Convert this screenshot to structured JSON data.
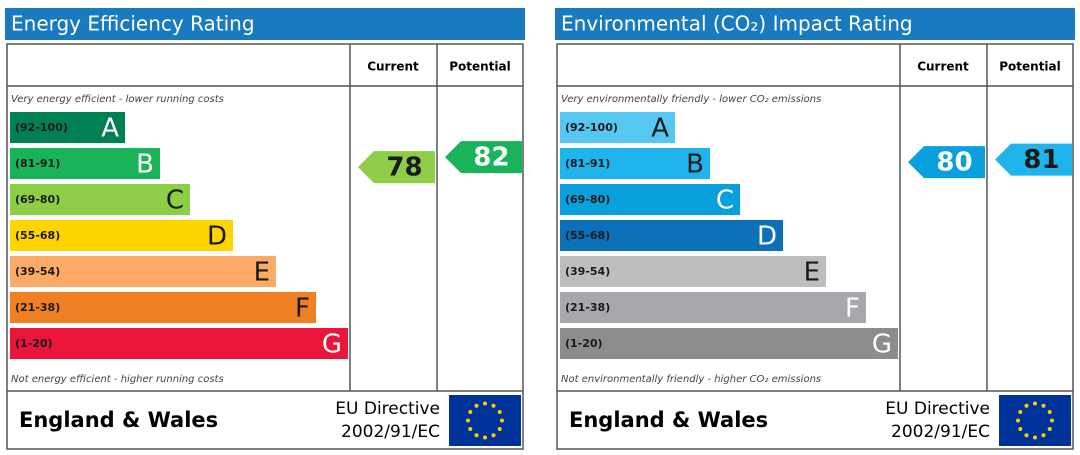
{
  "panels": [
    {
      "title": "Energy Efficiency Rating",
      "header": {
        "current": "Current",
        "potential": "Potential"
      },
      "top_note": "Very energy efficient - lower running costs",
      "bottom_note": "Not energy efficient - higher running costs",
      "bands": [
        {
          "range": "(92-100)",
          "letter": "A",
          "color": "#008054",
          "text_color": "#ffffff"
        },
        {
          "range": "(81-91)",
          "letter": "B",
          "color": "#19b459",
          "text_color": "#ffffff"
        },
        {
          "range": "(69-80)",
          "letter": "C",
          "color": "#8dce46",
          "text_color": "#1a1a1a"
        },
        {
          "range": "(55-68)",
          "letter": "D",
          "color": "#ffd500",
          "text_color": "#1a1a1a"
        },
        {
          "range": "(39-54)",
          "letter": "E",
          "color": "#fcaa65",
          "text_color": "#1a1a1a"
        },
        {
          "range": "(21-38)",
          "letter": "F",
          "color": "#ef8023",
          "text_color": "#1a1a1a"
        },
        {
          "range": "(1-20)",
          "letter": "G",
          "color": "#e9153b",
          "text_color": "#ffffff"
        }
      ],
      "current": {
        "value": 78,
        "color": "#8dce46",
        "text_color": "#1a1a1a"
      },
      "potential": {
        "value": 82,
        "color": "#19b459",
        "text_color": "#ffffff"
      },
      "footer": {
        "region": "England & Wales",
        "directive": "EU Directive",
        "directive_code": "2002/91/EC"
      }
    },
    {
      "title": "Environmental (CO₂) Impact Rating",
      "header": {
        "current": "Current",
        "potential": "Potential"
      },
      "top_note": "Very environmentally friendly - lower CO₂ emissions",
      "bottom_note": "Not environmentally friendly - higher CO₂ emissions",
      "bands": [
        {
          "range": "(92-100)",
          "letter": "A",
          "color": "#55c7f1",
          "text_color": "#1a1a1a"
        },
        {
          "range": "(81-91)",
          "letter": "B",
          "color": "#1fb5ec",
          "text_color": "#1a1a1a"
        },
        {
          "range": "(69-80)",
          "letter": "C",
          "color": "#0aa0dd",
          "text_color": "#ffffff"
        },
        {
          "range": "(55-68)",
          "letter": "D",
          "color": "#0c70b8",
          "text_color": "#ffffff"
        },
        {
          "range": "(39-54)",
          "letter": "E",
          "color": "#bbbdbf",
          "text_color": "#1a1a1a"
        },
        {
          "range": "(21-38)",
          "letter": "F",
          "color": "#a6a8ab",
          "text_color": "#ffffff"
        },
        {
          "range": "(1-20)",
          "letter": "G",
          "color": "#8a8c8e",
          "text_color": "#ffffff"
        }
      ],
      "current": {
        "value": 80,
        "color": "#0aa0dd",
        "text_color": "#ffffff"
      },
      "potential": {
        "value": 81,
        "color": "#1fb5ec",
        "text_color": "#1a1a1a"
      },
      "footer": {
        "region": "England & Wales",
        "directive": "EU Directive",
        "directive_code": "2002/91/EC"
      }
    }
  ]
}
